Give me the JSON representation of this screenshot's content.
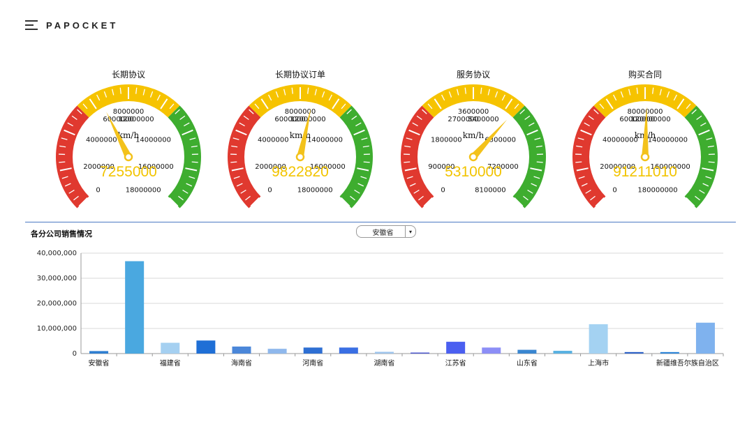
{
  "header": {
    "brand": "PAPOCKET",
    "menu_icon": "hamburger-icon"
  },
  "colors": {
    "red": "#e0392f",
    "yellow": "#f6c300",
    "green": "#3ead2f",
    "needle": "#f3c21b",
    "value": "#f2c400",
    "divider": "#4a78c2"
  },
  "gauges": [
    {
      "title": "长期协议",
      "unit": "km/h",
      "value": "7255000",
      "needle_value": 7255000,
      "max": 18000000,
      "ticks": [
        "0",
        "2000000",
        "4000000",
        "6000000",
        "8000000",
        "12000000",
        "14000000",
        "16000000",
        "18000000"
      ]
    },
    {
      "title": "长期协议订单",
      "unit": "km/h",
      "value": "9822820",
      "needle_value": 9822820,
      "max": 18000000,
      "ticks": [
        "0",
        "2000000",
        "4000000",
        "6000000",
        "8000000",
        "12000000",
        "14000000",
        "16000000",
        "18000000"
      ]
    },
    {
      "title": "服务协议",
      "unit": "km/h",
      "value": "5310000",
      "needle_value": 5310000,
      "max": 8100000,
      "ticks": [
        "0",
        "900000",
        "1800000",
        "2700000",
        "3600000",
        "5400000",
        "6300000",
        "7200000",
        "8100000"
      ]
    },
    {
      "title": "购买合同",
      "unit": "km/h",
      "value": "91211010",
      "needle_value": 91211010,
      "max": 180000000,
      "ticks": [
        "0",
        "20000000",
        "40000000",
        "60000000",
        "80000000",
        "120000000",
        "140000000",
        "160000000",
        "180000000"
      ]
    }
  ],
  "section": {
    "title": "各分公司销售情况",
    "select_value": "安徽省",
    "select_arrow": "▾"
  },
  "chart_data": {
    "type": "bar",
    "title": "各分公司销售情况",
    "ylim": [
      0,
      40000000
    ],
    "yticks": [
      "0",
      "10,000,000",
      "20,000,000",
      "30,000,000",
      "40,000,000"
    ],
    "ytick_values": [
      0,
      10000000,
      20000000,
      30000000,
      40000000
    ],
    "categories": [
      "安徽省",
      "",
      "福建省",
      "",
      "海南省",
      "",
      "河南省",
      "",
      "湖南省",
      "",
      "江苏省",
      "",
      "山东省",
      "",
      "上海市",
      "",
      "新疆维吾尔族自治区",
      ""
    ],
    "values": [
      1000000,
      36800000,
      4300000,
      5200000,
      2800000,
      1900000,
      2400000,
      2400000,
      700000,
      400000,
      4700000,
      2400000,
      1500000,
      1100000,
      11700000,
      600000,
      600000,
      12300000
    ],
    "bar_colors": [
      "#2f7fd1",
      "#4aa8e0",
      "#a5d0f1",
      "#1f6fd6",
      "#4b87d9",
      "#8fb8ec",
      "#2e6fd3",
      "#3a6fe3",
      "#9fc5ec",
      "#4a55d0",
      "#4b5ff0",
      "#8c8ef6",
      "#3a86d0",
      "#59b1e2",
      "#a4d2f2",
      "#2f63c8",
      "#2f86d8",
      "#7fb2ee"
    ]
  }
}
